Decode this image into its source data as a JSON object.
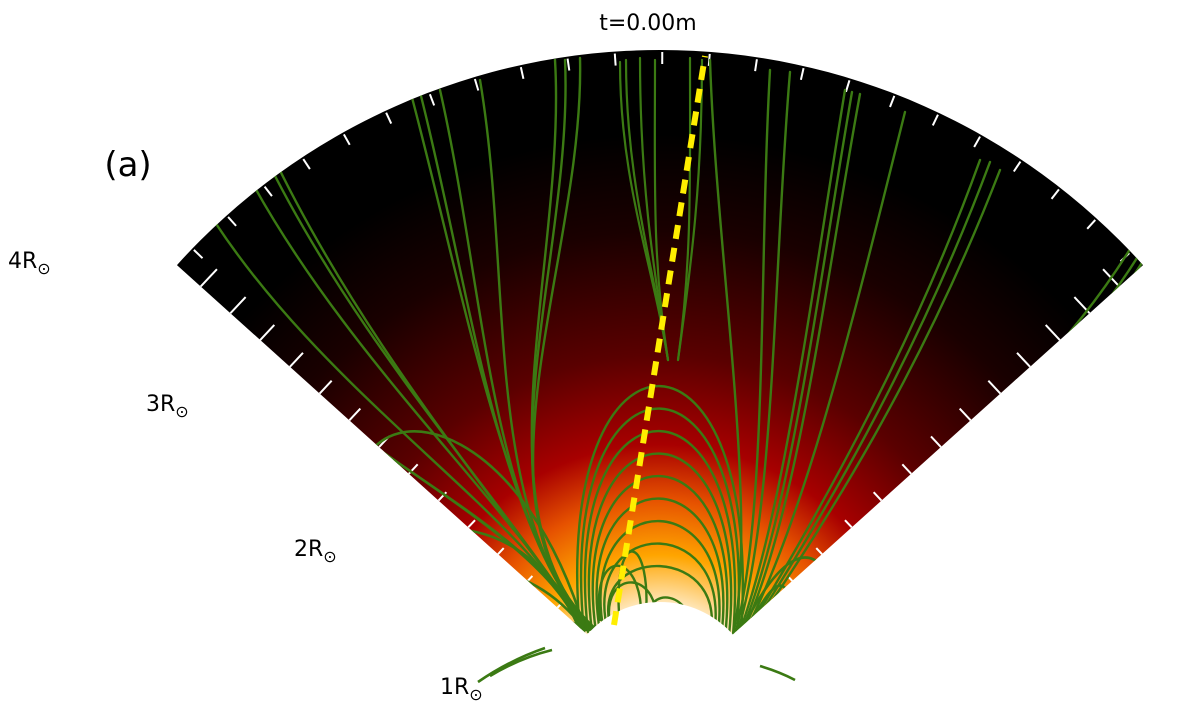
{
  "figure": {
    "time_label": "t=0.00m",
    "panel_label": "(a)"
  },
  "radial_axis": {
    "labels": [
      {
        "value": 1,
        "text": "1",
        "unit": "R",
        "unit_sub": "⊙"
      },
      {
        "value": 2,
        "text": "2",
        "unit": "R",
        "unit_sub": "⊙"
      },
      {
        "value": 3,
        "text": "3",
        "unit": "R",
        "unit_sub": "⊙"
      },
      {
        "value": 4,
        "text": "4",
        "unit": "R",
        "unit_sub": "⊙"
      }
    ]
  },
  "colors": {
    "field_lines": "#3b7a13",
    "trajectory": "#ffee00",
    "background": "#000000",
    "heatmap_hot": "#ffffff"
  }
}
